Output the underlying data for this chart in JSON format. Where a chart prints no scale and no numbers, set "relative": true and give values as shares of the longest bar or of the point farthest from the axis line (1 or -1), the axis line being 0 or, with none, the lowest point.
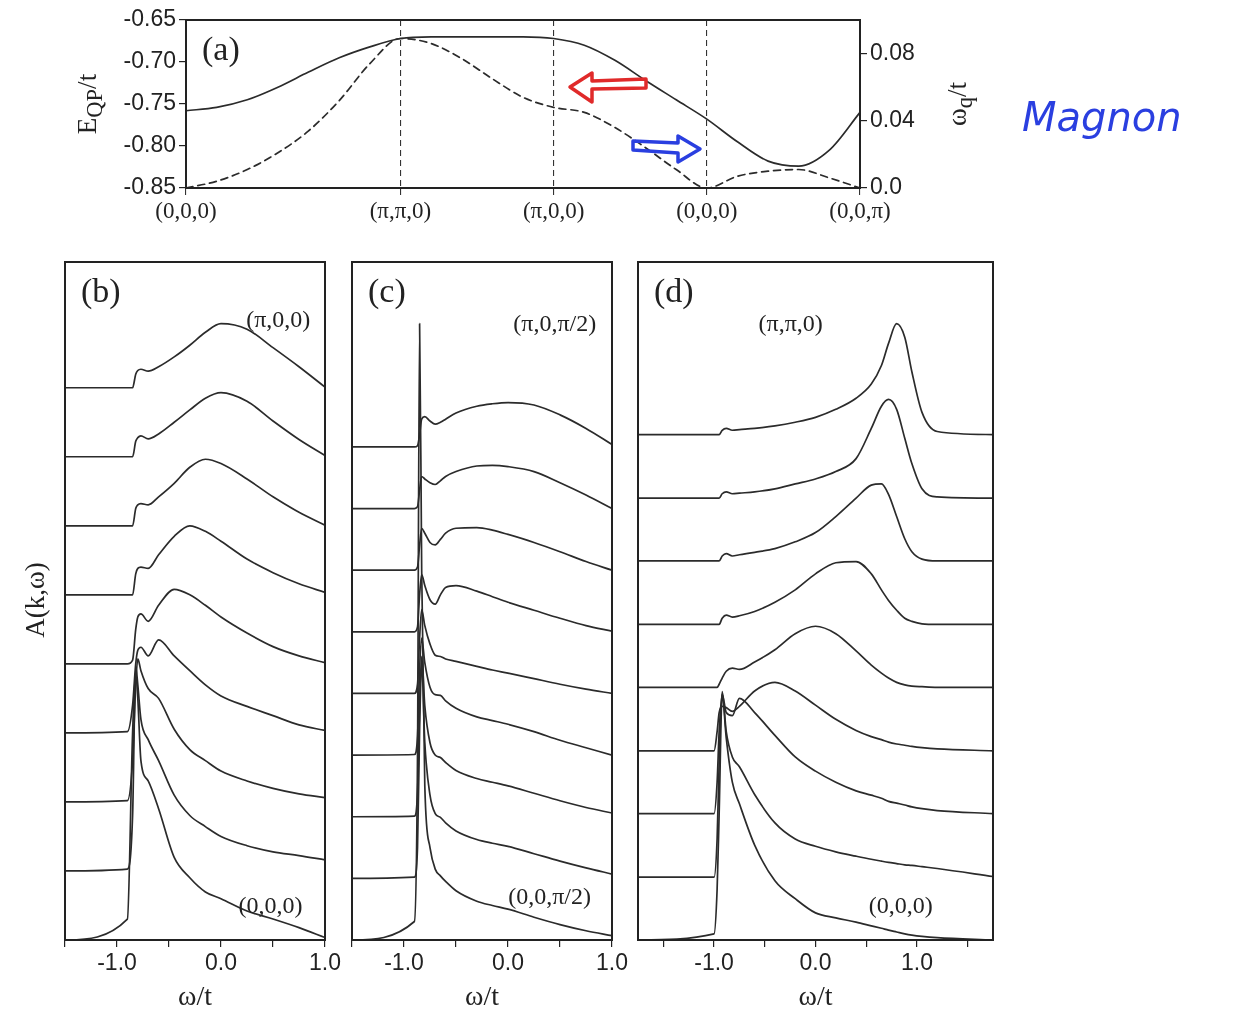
{
  "chart_data": [
    {
      "type": "line",
      "ylabel": "E$_{QP}$/t",
      "y2label": "ω$_{q}$/t",
      "categories": [
        "(0,0,0)",
        null,
        null,
        null,
        null,
        null,
        null,
        "(π,π,0)",
        null,
        null,
        null,
        null,
        "(π,0,0)",
        null,
        null,
        null,
        null,
        "(0,0,0)",
        null,
        null,
        null,
        null,
        "(0,0,π)"
      ],
      "ylim": [
        -0.85,
        -0.65
      ],
      "yticks": [
        -0.85,
        {
          "value": -0.8,
          "label": "-0.80"
        },
        -0.75,
        {
          "value": -0.7,
          "label": "-0.70"
        },
        -0.65
      ],
      "y2lim": [
        0,
        0.1
      ],
      "y2ticks": [
        {
          "value": 0,
          "label": "0.0"
        },
        0.04,
        0.08
      ],
      "series": [
        {
          "color": "#2b2b2b",
          "line_style": "solid",
          "values": [
            -0.758,
            -0.754,
            -0.745,
            -0.73,
            -0.712,
            -0.695,
            -0.682,
            -0.672,
            -0.67,
            -0.67,
            -0.67,
            -0.67,
            -0.672,
            -0.68,
            -0.698,
            -0.722,
            -0.745,
            -0.768,
            -0.795,
            -0.818,
            -0.824,
            -0.805,
            -0.76
          ]
        },
        {
          "color": "#2b2b2b",
          "line_style": "dashed",
          "axis": "y2",
          "values": [
            0,
            0.004,
            0.011,
            0.021,
            0.034,
            0.052,
            0.074,
            0.089,
            0.086,
            0.077,
            0.065,
            0.054,
            0.048,
            0.045,
            0.036,
            0.024,
            0.011,
            0,
            0.007,
            0.01,
            0.011,
            0.006,
            0
          ]
        }
      ],
      "grid": "x",
      "annotations": [
        "(a)",
        "Magnon"
      ]
    },
    {
      "type": "line",
      "relative": true,
      "xlabel": "ω/t",
      "ylabel": "A(k,ω)",
      "xlim": [
        -1.5,
        1.0
      ],
      "xticks": [
        {
          "value": -1.5,
          "label": null
        },
        {
          "value": -1,
          "label": "-1.0"
        },
        {
          "value": -0.5,
          "label": null
        },
        {
          "value": 0,
          "label": "0.0"
        },
        {
          "value": 0.5,
          "label": null
        },
        {
          "value": 1,
          "label": "1.0"
        }
      ],
      "x": [
        -1.5,
        -0.9,
        -0.85,
        -0.82,
        -0.8,
        -0.77,
        -0.7,
        -0.6,
        -0.45,
        -0.3,
        -0.15,
        0,
        0.25,
        0.5,
        0.75,
        1.0
      ],
      "series": [
        {
          "color": "#2b2b2b",
          "values": [
            0,
            0.034,
            0.336,
            0.435,
            0.392,
            0.291,
            0.258,
            0.213,
            0.134,
            0.101,
            0.078,
            0.067,
            0.047,
            0.034,
            0.02,
            0.004
          ]
        },
        {
          "color": "#2b2b2b",
          "values": [
            0.112,
            0.115,
            0.202,
            0.444,
            0.414,
            0.358,
            0.325,
            0.291,
            0.235,
            0.202,
            0.184,
            0.168,
            0.153,
            0.143,
            0.137,
            0.13
          ]
        },
        {
          "color": "#2b2b2b",
          "values": [
            0.224,
            0.226,
            0.291,
            0.414,
            0.456,
            0.437,
            0.408,
            0.392,
            0.342,
            0.309,
            0.291,
            0.274,
            0.258,
            0.246,
            0.237,
            0.231
          ]
        },
        {
          "color": "#2b2b2b",
          "values": [
            0.336,
            0.338,
            0.381,
            0.448,
            0.47,
            0.475,
            0.461,
            0.487,
            0.461,
            0.437,
            0.414,
            0.396,
            0.379,
            0.364,
            0.349,
            0.34
          ]
        },
        {
          "color": "#2b2b2b",
          "values": [
            0.448,
            0.448,
            0.454,
            0.504,
            0.524,
            0.529,
            0.517,
            0.543,
            0.569,
            0.56,
            0.543,
            0.524,
            0.498,
            0.476,
            0.461,
            0.45
          ]
        },
        {
          "color": "#2b2b2b",
          "values": [
            0.56,
            0.56,
            0.56,
            0.594,
            0.603,
            0.605,
            0.603,
            0.625,
            0.655,
            0.672,
            0.663,
            0.647,
            0.618,
            0.596,
            0.578,
            0.564
          ]
        },
        {
          "color": "#2b2b2b",
          "values": [
            0.672,
            0.672,
            0.672,
            0.7,
            0.706,
            0.708,
            0.706,
            0.719,
            0.741,
            0.767,
            0.78,
            0.773,
            0.748,
            0.719,
            0.694,
            0.673
          ]
        },
        {
          "color": "#2b2b2b",
          "values": [
            0.784,
            0.784,
            0.784,
            0.809,
            0.815,
            0.818,
            0.813,
            0.821,
            0.84,
            0.86,
            0.879,
            0.888,
            0.874,
            0.842,
            0.812,
            0.786
          ]
        },
        {
          "color": "#2b2b2b",
          "values": [
            0.896,
            0.896,
            0.896,
            0.918,
            0.924,
            0.926,
            0.923,
            0.93,
            0.946,
            0.965,
            0.986,
            1,
            0.991,
            0.961,
            0.93,
            0.897
          ]
        }
      ],
      "annotations": [
        "(b)",
        "(π,0,0)",
        "(0,0,0)"
      ]
    },
    {
      "type": "line",
      "relative": true,
      "xlabel": "ω/t",
      "xlim": [
        -1.5,
        1.0
      ],
      "xticks": [
        {
          "value": -1.5,
          "label": null
        },
        {
          "value": -1,
          "label": "-1.0"
        },
        {
          "value": -0.5,
          "label": null
        },
        {
          "value": 0,
          "label": "0.0"
        },
        {
          "value": 0.5,
          "label": null
        },
        {
          "value": 1,
          "label": "1.0"
        }
      ],
      "x": [
        -1.5,
        -0.9,
        -0.87,
        -0.85,
        -0.83,
        -0.8,
        -0.75,
        -0.7,
        -0.65,
        -0.6,
        -0.5,
        -0.3,
        -0.15,
        0,
        0.25,
        0.5,
        0.75,
        1.0
      ],
      "series": [
        {
          "color": "#2b2b2b",
          "values": [
            0,
            0.03,
            0.3,
            1,
            0.6,
            0.25,
            0.15,
            0.115,
            0.104,
            0.095,
            0.08,
            0.063,
            0.056,
            0.05,
            0.037,
            0.025,
            0.015,
            0.007
          ]
        },
        {
          "color": "#2b2b2b",
          "values": [
            0.1,
            0.102,
            0.15,
            0.34,
            0.45,
            0.32,
            0.235,
            0.205,
            0.199,
            0.19,
            0.177,
            0.163,
            0.157,
            0.152,
            0.14,
            0.128,
            0.117,
            0.107
          ]
        },
        {
          "color": "#2b2b2b",
          "values": [
            0.2,
            0.201,
            0.24,
            0.38,
            0.46,
            0.38,
            0.32,
            0.3,
            0.296,
            0.288,
            0.275,
            0.262,
            0.256,
            0.25,
            0.238,
            0.226,
            0.215,
            0.206
          ]
        },
        {
          "color": "#2b2b2b",
          "values": [
            0.3,
            0.301,
            0.33,
            0.44,
            0.49,
            0.45,
            0.41,
            0.398,
            0.397,
            0.388,
            0.376,
            0.362,
            0.356,
            0.35,
            0.338,
            0.324,
            0.312,
            0.3
          ]
        },
        {
          "color": "#2b2b2b",
          "values": [
            0.4,
            0.4,
            0.415,
            0.49,
            0.536,
            0.51,
            0.48,
            0.462,
            0.46,
            0.456,
            0.452,
            0.444,
            0.438,
            0.433,
            0.424,
            0.415,
            0.407,
            0.4
          ]
        },
        {
          "color": "#2b2b2b",
          "values": [
            0.5,
            0.5,
            0.508,
            0.56,
            0.593,
            0.575,
            0.552,
            0.545,
            0.56,
            0.572,
            0.575,
            0.566,
            0.557,
            0.548,
            0.535,
            0.522,
            0.51,
            0.501
          ]
        },
        {
          "color": "#2b2b2b",
          "values": [
            0.6,
            0.6,
            0.605,
            0.64,
            0.668,
            0.66,
            0.645,
            0.641,
            0.65,
            0.66,
            0.668,
            0.669,
            0.665,
            0.658,
            0.645,
            0.63,
            0.614,
            0.6
          ]
        },
        {
          "color": "#2b2b2b",
          "values": [
            0.7,
            0.7,
            0.703,
            0.73,
            0.752,
            0.748,
            0.742,
            0.739,
            0.745,
            0.752,
            0.76,
            0.769,
            0.77,
            0.768,
            0.76,
            0.742,
            0.722,
            0.7
          ]
        },
        {
          "color": "#2b2b2b",
          "values": [
            0.8,
            0.8,
            0.802,
            0.82,
            0.845,
            0.849,
            0.842,
            0.837,
            0.84,
            0.845,
            0.855,
            0.866,
            0.87,
            0.872,
            0.868,
            0.852,
            0.83,
            0.804
          ]
        }
      ],
      "annotations": [
        "(c)",
        "(π,0,π/2)",
        "(0,0,π/2)"
      ]
    },
    {
      "type": "line",
      "relative": true,
      "xlabel": "ω/t",
      "xlim": [
        -1.75,
        1.75
      ],
      "xticks": [
        {
          "value": -1.5,
          "label": null
        },
        {
          "value": -1,
          "label": "-1.0"
        },
        {
          "value": -0.5,
          "label": null
        },
        {
          "value": 0,
          "label": "0.0"
        },
        {
          "value": 0.5,
          "label": null
        },
        {
          "value": 1,
          "label": "1.0"
        },
        {
          "value": 1.5,
          "label": null
        }
      ],
      "x": [
        -1.75,
        -1.0,
        -0.97,
        -0.95,
        -0.92,
        -0.88,
        -0.82,
        -0.75,
        -0.6,
        -0.4,
        -0.2,
        0,
        0.2,
        0.4,
        0.55,
        0.65,
        0.72,
        0.8,
        0.88,
        0.95,
        1.05,
        1.2,
        1.75
      ],
      "series": [
        {
          "color": "#2b2b2b",
          "values": [
            0,
            0.01,
            0.082,
            0.205,
            0.398,
            0.328,
            0.256,
            0.221,
            0.154,
            0.096,
            0.067,
            0.044,
            0.036,
            0.029,
            0.023,
            0.019,
            0.016,
            0.013,
            0.01,
            0.008,
            0.006,
            0.004,
            0
          ]
        },
        {
          "color": "#2b2b2b",
          "values": [
            0.102,
            0.102,
            0.164,
            0.287,
            0.403,
            0.338,
            0.297,
            0.281,
            0.236,
            0.19,
            0.164,
            0.152,
            0.143,
            0.136,
            0.131,
            0.128,
            0.126,
            0.124,
            0.122,
            0.121,
            0.119,
            0.116,
            0.103
          ]
        },
        {
          "color": "#2b2b2b",
          "values": [
            0.205,
            0.205,
            0.256,
            0.338,
            0.399,
            0.369,
            0.364,
            0.392,
            0.369,
            0.332,
            0.297,
            0.274,
            0.256,
            0.242,
            0.235,
            0.23,
            0.225,
            0.222,
            0.219,
            0.216,
            0.213,
            0.21,
            0.205
          ]
        },
        {
          "color": "#2b2b2b",
          "values": [
            0.307,
            0.307,
            0.338,
            0.369,
            0.379,
            0.377,
            0.371,
            0.379,
            0.404,
            0.418,
            0.404,
            0.381,
            0.358,
            0.34,
            0.33,
            0.325,
            0.321,
            0.318,
            0.316,
            0.314,
            0.312,
            0.31,
            0.307
          ]
        },
        {
          "color": "#2b2b2b",
          "values": [
            0.41,
            0.41,
            0.41,
            0.415,
            0.425,
            0.436,
            0.441,
            0.439,
            0.451,
            0.471,
            0.497,
            0.509,
            0.497,
            0.469,
            0.446,
            0.433,
            0.425,
            0.418,
            0.414,
            0.412,
            0.411,
            0.41,
            0.41
          ]
        },
        {
          "color": "#2b2b2b",
          "values": [
            0.512,
            0.512,
            0.512,
            0.512,
            0.522,
            0.527,
            0.524,
            0.526,
            0.533,
            0.548,
            0.568,
            0.594,
            0.612,
            0.614,
            0.594,
            0.568,
            0.551,
            0.535,
            0.522,
            0.517,
            0.513,
            0.512,
            0.512
          ]
        },
        {
          "color": "#2b2b2b",
          "values": [
            0.615,
            0.615,
            0.615,
            0.615,
            0.623,
            0.627,
            0.623,
            0.625,
            0.629,
            0.635,
            0.646,
            0.661,
            0.687,
            0.717,
            0.738,
            0.74,
            0.723,
            0.687,
            0.651,
            0.63,
            0.618,
            0.615,
            0.615
          ]
        },
        {
          "color": "#2b2b2b",
          "values": [
            0.717,
            0.717,
            0.717,
            0.717,
            0.724,
            0.727,
            0.724,
            0.725,
            0.727,
            0.732,
            0.74,
            0.748,
            0.76,
            0.781,
            0.83,
            0.866,
            0.877,
            0.861,
            0.814,
            0.773,
            0.732,
            0.719,
            0.717
          ]
        },
        {
          "color": "#2b2b2b",
          "values": [
            0.82,
            0.82,
            0.82,
            0.82,
            0.827,
            0.83,
            0.827,
            0.828,
            0.83,
            0.834,
            0.84,
            0.848,
            0.861,
            0.879,
            0.902,
            0.932,
            0.968,
            1,
            0.978,
            0.922,
            0.856,
            0.825,
            0.82
          ]
        }
      ],
      "annotations": [
        "(d)",
        "(π,π,0)",
        "(0,0,0)"
      ]
    }
  ]
}
